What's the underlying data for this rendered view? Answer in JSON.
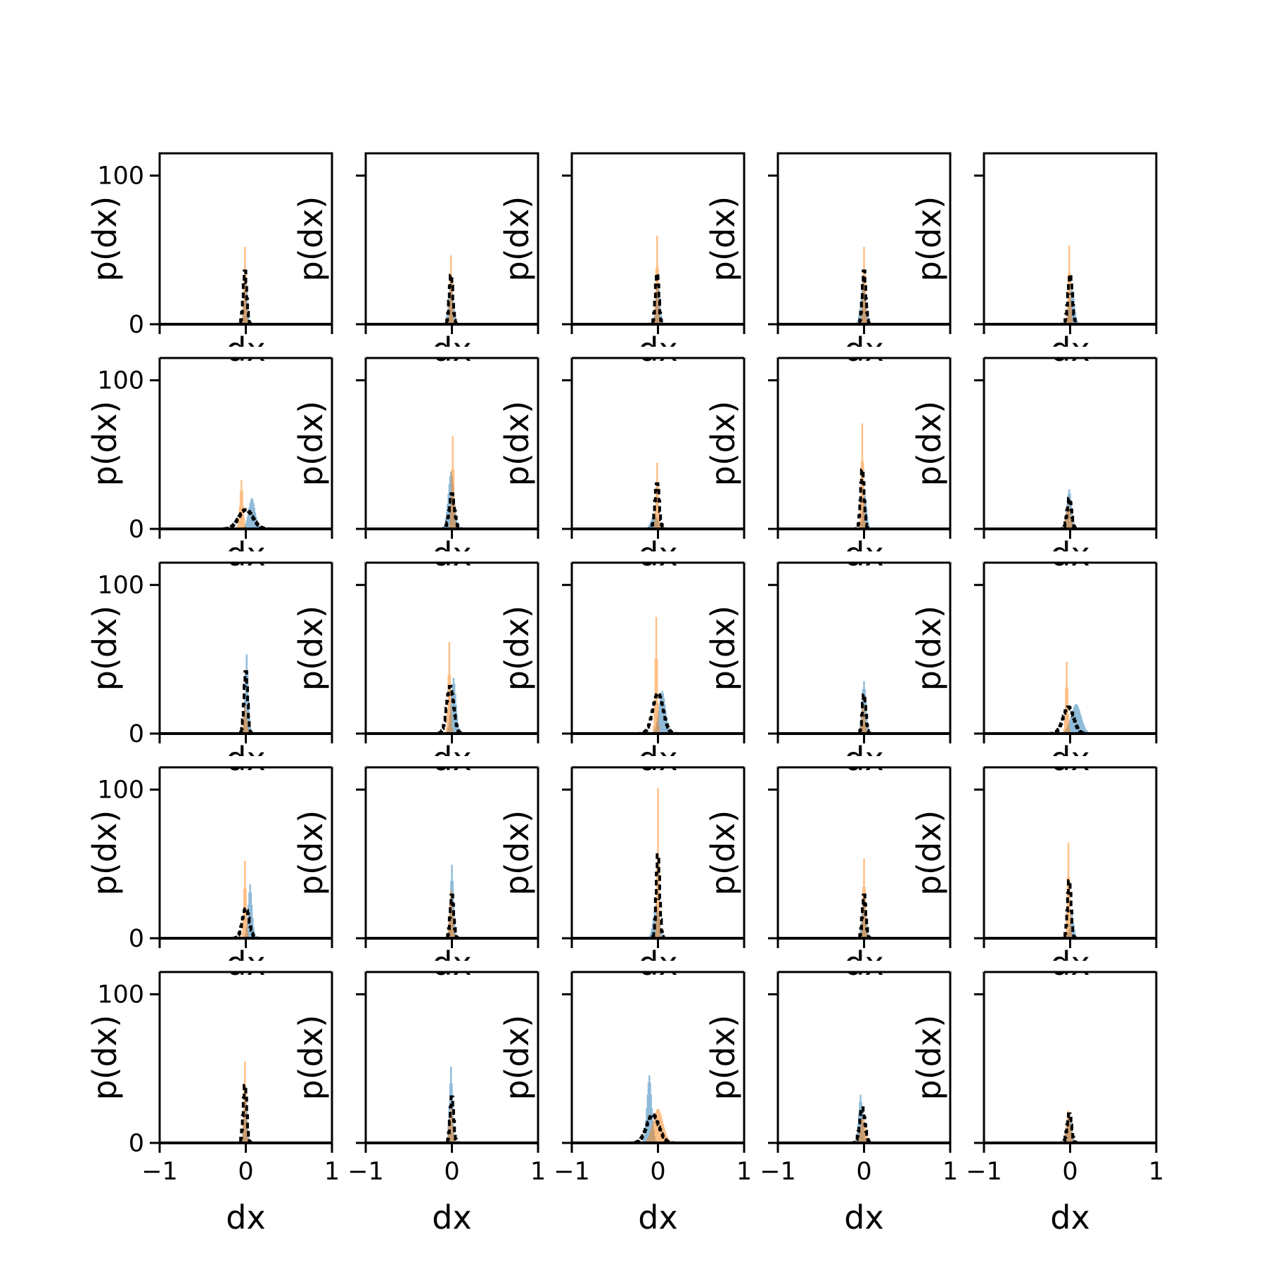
{
  "chart_data": {
    "type": "histogram-grid",
    "rows": 5,
    "cols": 5,
    "xlabel": "dx",
    "ylabel": "p(dx)",
    "xlim": [
      -1,
      1
    ],
    "ylim": [
      0,
      115
    ],
    "xticks": [
      -1,
      0,
      1
    ],
    "xtick_labels": [
      "−1",
      "0",
      "1"
    ],
    "yticks": [
      0,
      100
    ],
    "ytick_labels": [
      "0",
      "100"
    ],
    "colors": {
      "blue": "#1f77b4",
      "orange": "#ff7f0e",
      "dashed": "#000000"
    },
    "panels": [
      {
        "row": 0,
        "col": 0,
        "blue": {
          "center": 0.0,
          "width": 0.02,
          "peak": 30
        },
        "orange": {
          "center": -0.01,
          "width": 0.015,
          "peak": 55
        },
        "black": {
          "center": -0.01,
          "width": 0.02,
          "peak": 37
        }
      },
      {
        "row": 0,
        "col": 1,
        "blue": {
          "center": -0.01,
          "width": 0.03,
          "peak": 28
        },
        "orange": {
          "center": -0.01,
          "width": 0.015,
          "peak": 49
        },
        "black": {
          "center": -0.01,
          "width": 0.02,
          "peak": 34
        }
      },
      {
        "row": 0,
        "col": 2,
        "blue": {
          "center": 0.0,
          "width": 0.025,
          "peak": 28
        },
        "orange": {
          "center": -0.01,
          "width": 0.015,
          "peak": 63
        },
        "black": {
          "center": -0.01,
          "width": 0.02,
          "peak": 35
        }
      },
      {
        "row": 0,
        "col": 3,
        "blue": {
          "center": -0.01,
          "width": 0.03,
          "peak": 30
        },
        "orange": {
          "center": 0.0,
          "width": 0.015,
          "peak": 55
        },
        "black": {
          "center": 0.0,
          "width": 0.02,
          "peak": 37
        }
      },
      {
        "row": 0,
        "col": 4,
        "blue": {
          "center": 0.02,
          "width": 0.03,
          "peak": 25
        },
        "orange": {
          "center": -0.01,
          "width": 0.015,
          "peak": 56
        },
        "black": {
          "center": 0.0,
          "width": 0.025,
          "peak": 34
        }
      },
      {
        "row": 1,
        "col": 0,
        "blue": {
          "center": 0.07,
          "width": 0.04,
          "peak": 21
        },
        "orange": {
          "center": -0.05,
          "width": 0.02,
          "peak": 34
        },
        "black": {
          "center": 0.0,
          "width": 0.08,
          "peak": 13
        }
      },
      {
        "row": 1,
        "col": 1,
        "blue": {
          "center": -0.01,
          "width": 0.035,
          "peak": 39
        },
        "orange": {
          "center": 0.01,
          "width": 0.015,
          "peak": 66
        },
        "black": {
          "center": 0.0,
          "width": 0.03,
          "peak": 24
        }
      },
      {
        "row": 1,
        "col": 2,
        "blue": {
          "center": -0.04,
          "width": 0.04,
          "peak": 10
        },
        "orange": {
          "center": -0.01,
          "width": 0.015,
          "peak": 47
        },
        "black": {
          "center": -0.01,
          "width": 0.025,
          "peak": 31
        }
      },
      {
        "row": 1,
        "col": 3,
        "blue": {
          "center": 0.01,
          "width": 0.025,
          "peak": 23
        },
        "orange": {
          "center": -0.02,
          "width": 0.015,
          "peak": 75
        },
        "black": {
          "center": -0.02,
          "width": 0.02,
          "peak": 41
        }
      },
      {
        "row": 1,
        "col": 4,
        "blue": {
          "center": -0.01,
          "width": 0.03,
          "peak": 27
        },
        "orange": {
          "center": -0.02,
          "width": 0.03,
          "peak": 16
        },
        "black": {
          "center": -0.01,
          "width": 0.025,
          "peak": 21
        }
      },
      {
        "row": 2,
        "col": 0,
        "blue": {
          "center": 0.01,
          "width": 0.02,
          "peak": 55
        },
        "orange": {
          "center": -0.01,
          "width": 0.02,
          "peak": 20
        },
        "black": {
          "center": 0.0,
          "width": 0.02,
          "peak": 43
        }
      },
      {
        "row": 2,
        "col": 1,
        "blue": {
          "center": 0.02,
          "width": 0.03,
          "peak": 38
        },
        "orange": {
          "center": -0.03,
          "width": 0.015,
          "peak": 65
        },
        "black": {
          "center": -0.02,
          "width": 0.04,
          "peak": 32
        }
      },
      {
        "row": 2,
        "col": 2,
        "blue": {
          "center": 0.05,
          "width": 0.04,
          "peak": 29
        },
        "orange": {
          "center": -0.02,
          "width": 0.015,
          "peak": 83
        },
        "black": {
          "center": 0.0,
          "width": 0.06,
          "peak": 27
        }
      },
      {
        "row": 2,
        "col": 3,
        "blue": {
          "center": 0.0,
          "width": 0.025,
          "peak": 36
        },
        "orange": {
          "center": -0.01,
          "width": 0.02,
          "peak": 21
        },
        "black": {
          "center": 0.0,
          "width": 0.02,
          "peak": 27
        }
      },
      {
        "row": 2,
        "col": 4,
        "blue": {
          "center": 0.07,
          "width": 0.06,
          "peak": 20
        },
        "orange": {
          "center": -0.04,
          "width": 0.015,
          "peak": 51
        },
        "black": {
          "center": -0.02,
          "width": 0.06,
          "peak": 18
        }
      },
      {
        "row": 3,
        "col": 0,
        "blue": {
          "center": 0.05,
          "width": 0.025,
          "peak": 37
        },
        "orange": {
          "center": -0.01,
          "width": 0.015,
          "peak": 55
        },
        "black": {
          "center": 0.0,
          "width": 0.04,
          "peak": 20
        }
      },
      {
        "row": 3,
        "col": 1,
        "blue": {
          "center": 0.0,
          "width": 0.02,
          "peak": 51
        },
        "orange": {
          "center": -0.01,
          "width": 0.02,
          "peak": 33
        },
        "black": {
          "center": 0.0,
          "width": 0.02,
          "peak": 30
        }
      },
      {
        "row": 3,
        "col": 2,
        "blue": {
          "center": -0.02,
          "width": 0.035,
          "peak": 23
        },
        "orange": {
          "center": 0.0,
          "width": 0.012,
          "peak": 110
        },
        "black": {
          "center": 0.0,
          "width": 0.02,
          "peak": 58
        }
      },
      {
        "row": 3,
        "col": 3,
        "blue": {
          "center": 0.0,
          "width": 0.025,
          "peak": 28
        },
        "orange": {
          "center": 0.0,
          "width": 0.015,
          "peak": 57
        },
        "black": {
          "center": 0.0,
          "width": 0.02,
          "peak": 30
        }
      },
      {
        "row": 3,
        "col": 4,
        "blue": {
          "center": 0.02,
          "width": 0.025,
          "peak": 16
        },
        "orange": {
          "center": -0.02,
          "width": 0.015,
          "peak": 68
        },
        "black": {
          "center": -0.01,
          "width": 0.02,
          "peak": 40
        }
      },
      {
        "row": 4,
        "col": 0,
        "blue": {
          "center": 0.0,
          "width": 0.02,
          "peak": 30
        },
        "orange": {
          "center": -0.01,
          "width": 0.015,
          "peak": 58
        },
        "black": {
          "center": -0.01,
          "width": 0.02,
          "peak": 40
        }
      },
      {
        "row": 4,
        "col": 1,
        "blue": {
          "center": -0.01,
          "width": 0.02,
          "peak": 53
        },
        "orange": {
          "center": -0.01,
          "width": 0.02,
          "peak": 25
        },
        "black": {
          "center": 0.0,
          "width": 0.02,
          "peak": 32
        }
      },
      {
        "row": 4,
        "col": 2,
        "blue": {
          "center": -0.1,
          "width": 0.03,
          "peak": 46
        },
        "orange": {
          "center": 0.0,
          "width": 0.06,
          "peak": 23
        },
        "black": {
          "center": -0.06,
          "width": 0.07,
          "peak": 19
        }
      },
      {
        "row": 4,
        "col": 3,
        "blue": {
          "center": -0.04,
          "width": 0.025,
          "peak": 33
        },
        "orange": {
          "center": -0.01,
          "width": 0.03,
          "peak": 18
        },
        "black": {
          "center": -0.02,
          "width": 0.03,
          "peak": 24
        }
      },
      {
        "row": 4,
        "col": 4,
        "blue": {
          "center": -0.01,
          "width": 0.03,
          "peak": 20
        },
        "orange": {
          "center": -0.02,
          "width": 0.025,
          "peak": 22
        },
        "black": {
          "center": -0.01,
          "width": 0.025,
          "peak": 20
        }
      }
    ]
  }
}
